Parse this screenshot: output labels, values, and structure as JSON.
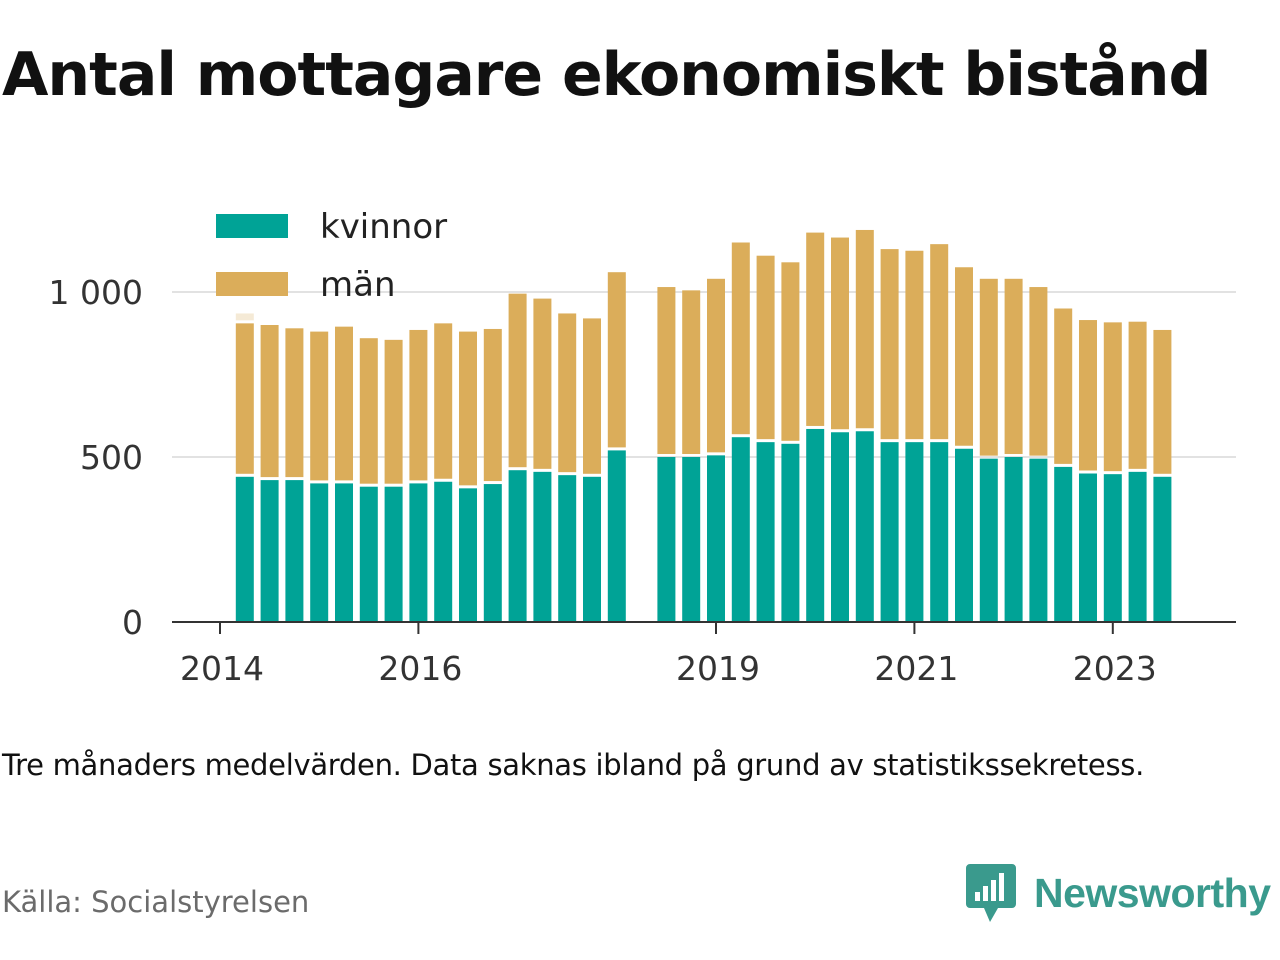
{
  "title": "Antal mottagare ekonomiskt bistånd",
  "note": "Tre månaders medelvärden. Data saknas ibland på grund av statistikssekretess.",
  "source": "Källa: Socialstyrelsen",
  "logo": {
    "name": "Newsworthy",
    "icon": "newsworthy-logo-icon",
    "color": "#3a9a8d"
  },
  "chart_data": {
    "type": "bar",
    "stacked": true,
    "x_unit": "quarter",
    "x": [
      "2014Q2",
      "2014Q3",
      "2014Q4",
      "2015Q1",
      "2015Q2",
      "2015Q3",
      "2015Q4",
      "2016Q1",
      "2016Q2",
      "2016Q3",
      "2016Q4",
      "2017Q1",
      "2017Q2",
      "2017Q3",
      "2017Q4",
      "2018Q1",
      "2018Q3",
      "2018Q4",
      "2019Q1",
      "2019Q2",
      "2019Q3",
      "2019Q4",
      "2020Q1",
      "2020Q2",
      "2020Q3",
      "2020Q4",
      "2021Q1",
      "2021Q2",
      "2021Q3",
      "2021Q4",
      "2022Q1",
      "2022Q2",
      "2022Q3",
      "2022Q4",
      "2023Q1",
      "2023Q2",
      "2023Q3"
    ],
    "series": [
      {
        "name": "kvinnor",
        "color": "#00a396",
        "values": [
          440,
          430,
          430,
          420,
          420,
          410,
          410,
          420,
          425,
          405,
          418,
          460,
          455,
          445,
          440,
          520,
          500,
          500,
          505,
          560,
          545,
          540,
          585,
          575,
          578,
          545,
          545,
          545,
          525,
          495,
          500,
          495,
          470,
          450,
          448,
          455,
          440
        ]
      },
      {
        "name": "män",
        "color": "#dbad5a",
        "values": [
          465,
          470,
          460,
          460,
          475,
          450,
          445,
          465,
          480,
          475,
          470,
          535,
          525,
          490,
          480,
          540,
          515,
          505,
          535,
          590,
          565,
          550,
          595,
          590,
          610,
          585,
          580,
          600,
          550,
          545,
          540,
          520,
          480,
          465,
          460,
          455,
          445
        ]
      }
    ],
    "partial_top": [
      30,
      0,
      0,
      0,
      0,
      0,
      0,
      0,
      0,
      0,
      0,
      0,
      0,
      0,
      0,
      0,
      0,
      0,
      0,
      0,
      0,
      0,
      0,
      0,
      0,
      0,
      0,
      0,
      0,
      0,
      0,
      0,
      0,
      0,
      0,
      0,
      0
    ],
    "partial_color": "#f5ead6",
    "yticks": [
      0,
      500,
      1000
    ],
    "ytick_labels": [
      "0",
      "500",
      "1 000"
    ],
    "xticks": [
      "2014Q1",
      "2016Q1",
      "2019Q1",
      "2021Q1",
      "2023Q1"
    ],
    "xtick_labels": [
      "2014",
      "2016",
      "2019",
      "2021",
      "2023"
    ],
    "ylim": [
      0,
      1200
    ],
    "grid": true,
    "legend_position": "top-left"
  }
}
